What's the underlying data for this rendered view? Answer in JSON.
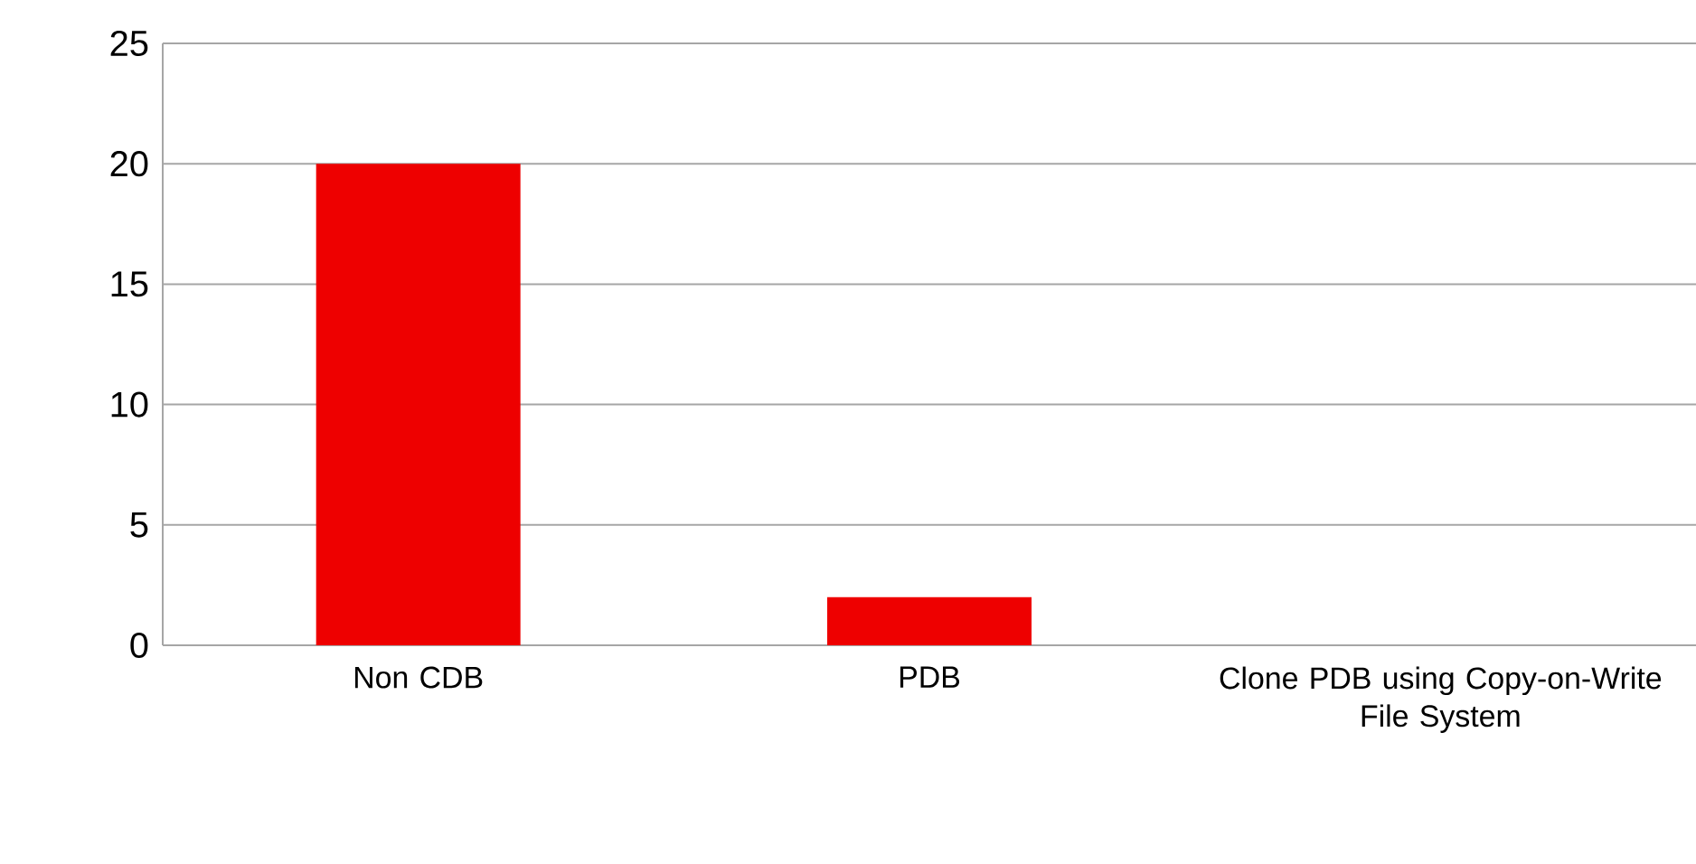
{
  "chart_data": {
    "type": "bar",
    "categories": [
      "Non CDB",
      "PDB",
      "Clone PDB using Copy-on-Write File System"
    ],
    "values": [
      20,
      2,
      0
    ],
    "color": "#ee0000",
    "ylim": [
      0,
      25
    ],
    "yticks": [
      0,
      5,
      10,
      15,
      20,
      25
    ],
    "grid": "y"
  }
}
